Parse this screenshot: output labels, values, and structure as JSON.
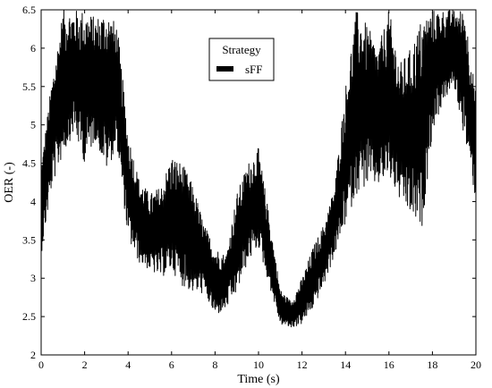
{
  "chart_data": {
    "type": "line",
    "title": "",
    "xlabel": "Time (s)",
    "ylabel": "OER (-)",
    "xlim": [
      0,
      20
    ],
    "ylim": [
      2,
      6.5
    ],
    "xticks": [
      0,
      2,
      4,
      6,
      8,
      10,
      12,
      14,
      16,
      18,
      20
    ],
    "yticks": [
      2,
      2.5,
      3,
      3.5,
      4,
      4.5,
      5,
      5.5,
      6,
      6.5
    ],
    "xtick_labels": [
      "0",
      "2",
      "4",
      "6",
      "8",
      "10",
      "12",
      "14",
      "16",
      "18",
      "20"
    ],
    "ytick_labels": [
      "2",
      "2.5",
      "3",
      "3.5",
      "4",
      "4.5",
      "5",
      "5.5",
      "6",
      "6.5"
    ],
    "grid": false,
    "legend": {
      "title": "Strategy",
      "placement": "top-center"
    },
    "series": [
      {
        "name": "sFF",
        "color": "#000000",
        "envelope": {
          "x": [
            0,
            0.5,
            1,
            1.5,
            2,
            2.5,
            3,
            3.5,
            4,
            4.5,
            5,
            5.5,
            6,
            6.5,
            7,
            7.5,
            8,
            8.5,
            9,
            9.5,
            10,
            10.5,
            11,
            11.5,
            12,
            12.5,
            13,
            13.5,
            14,
            14.5,
            15,
            15.5,
            16,
            16.5,
            17,
            17.5,
            18,
            18.5,
            19,
            19.5,
            20
          ],
          "lower": [
            3.3,
            4.2,
            4.6,
            4.9,
            4.5,
            4.8,
            4.4,
            4.7,
            3.5,
            3.2,
            3.1,
            3.0,
            3.1,
            2.9,
            2.8,
            2.8,
            2.5,
            2.6,
            2.8,
            3.2,
            3.4,
            2.9,
            2.4,
            2.35,
            2.4,
            2.6,
            2.9,
            3.3,
            3.7,
            4.1,
            4.2,
            4.2,
            4.3,
            4.0,
            3.8,
            3.6,
            4.9,
            5.3,
            5.5,
            4.8,
            4.0
          ],
          "upper": [
            4.5,
            5.6,
            6.5,
            6.5,
            6.5,
            6.4,
            6.5,
            6.3,
            4.9,
            4.3,
            4.1,
            4.2,
            4.6,
            4.5,
            4.2,
            3.7,
            3.4,
            3.3,
            4.1,
            4.5,
            4.7,
            3.8,
            2.85,
            2.7,
            3.0,
            3.4,
            3.7,
            4.2,
            5.5,
            6.5,
            6.3,
            6.0,
            6.5,
            5.8,
            6.0,
            6.4,
            6.5,
            6.5,
            6.5,
            6.5,
            5.4
          ]
        }
      }
    ]
  }
}
